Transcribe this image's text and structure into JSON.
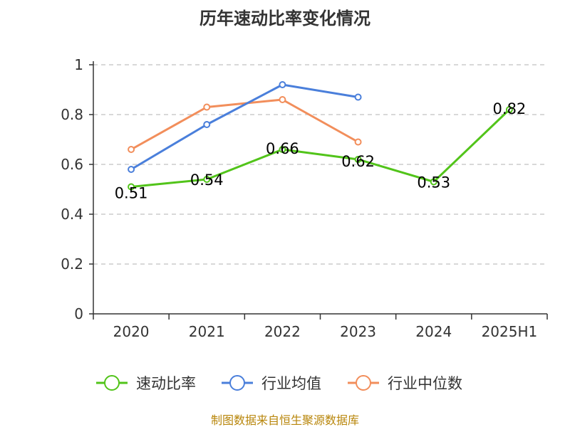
{
  "chart_data": {
    "type": "line",
    "title": "历年速动比率变化情况",
    "categories": [
      "2020",
      "2021",
      "2022",
      "2023",
      "2024",
      "2025H1"
    ],
    "y_ticks": [
      "0",
      "0.2",
      "0.4",
      "0.6",
      "0.8",
      "1"
    ],
    "ylim": [
      0,
      1
    ],
    "grid": "horizontal-dashed",
    "legend_position": "bottom",
    "series": [
      {
        "name": "速动比率",
        "color": "#52c41a",
        "values": [
          0.51,
          0.54,
          0.66,
          0.62,
          0.53,
          0.82
        ],
        "labels": [
          "0.51",
          "0.54",
          "0.66",
          "0.62",
          "0.53",
          "0.82"
        ]
      },
      {
        "name": "行业均值",
        "color": "#4a7fdb",
        "values": [
          0.58,
          0.76,
          0.92,
          0.87,
          null,
          null
        ]
      },
      {
        "name": "行业中位数",
        "color": "#f28e5b",
        "values": [
          0.66,
          0.83,
          0.86,
          0.69,
          null,
          null
        ]
      }
    ]
  },
  "footer": {
    "source": "制图数据来自恒生聚源数据库"
  }
}
